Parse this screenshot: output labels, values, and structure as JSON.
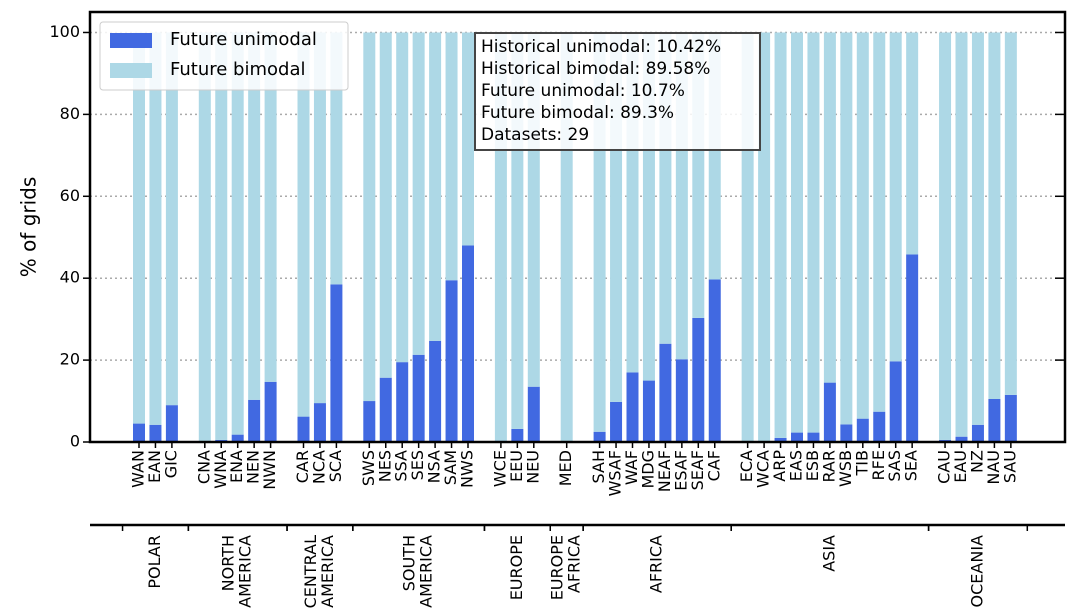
{
  "chart_data": {
    "type": "bar",
    "stacked": true,
    "ylabel": "% of grids",
    "categories": [
      "WAN",
      "EAN",
      "GIC",
      null,
      "CNA",
      "WNA",
      "ENA",
      "NEN",
      "NWN",
      null,
      "CAR",
      "NCA",
      "SCA",
      null,
      "SWS",
      "NES",
      "SSA",
      "SES",
      "NSA",
      "SAM",
      "NWS",
      null,
      "WCE",
      "EEU",
      "NEU",
      null,
      "MED",
      null,
      "SAH",
      "WSAF",
      "WAF",
      "MDG",
      "NEAF",
      "ESAF",
      "SEAF",
      "CAF",
      null,
      "ECA",
      "WCA",
      "ARP",
      "EAS",
      "ESB",
      "RAR",
      "WSB",
      "TIB",
      "RFE",
      "SAS",
      "SEA",
      null,
      "CAU",
      "EAU",
      "NZ",
      "NAU",
      "SAU"
    ],
    "series": [
      {
        "name": "Future unimodal",
        "color": "#4169e1",
        "values": [
          4.5,
          4.2,
          9,
          null,
          0,
          0.5,
          1.8,
          10.3,
          14.7,
          null,
          6.2,
          9.5,
          38.5,
          null,
          10,
          15.7,
          19.5,
          21.3,
          24.7,
          39.5,
          48,
          null,
          0.3,
          3.2,
          13.5,
          null,
          0.2,
          null,
          2.5,
          9.8,
          17,
          15,
          24,
          20.2,
          30.3,
          39.7,
          null,
          0,
          0,
          1,
          2.3,
          2.3,
          14.5,
          4.3,
          5.7,
          7.4,
          19.7,
          45.8,
          null,
          0.5,
          1.3,
          4.2,
          10.5,
          11.5
        ]
      },
      {
        "name": "Future bimodal",
        "color": "#add8e6",
        "values": [
          95.5,
          95.8,
          91,
          null,
          100,
          99.5,
          98.2,
          89.7,
          85.3,
          null,
          93.8,
          90.5,
          61.5,
          null,
          90,
          84.3,
          80.5,
          78.7,
          75.3,
          60.5,
          52,
          null,
          99.7,
          96.8,
          86.5,
          null,
          99.8,
          null,
          97.5,
          90.2,
          83,
          85,
          76,
          79.8,
          69.7,
          60.3,
          null,
          100,
          100,
          99,
          97.7,
          97.7,
          85.5,
          95.7,
          94.3,
          92.6,
          80.3,
          54.2,
          null,
          99.5,
          98.7,
          95.8,
          89.5,
          88.5
        ]
      }
    ],
    "groups": [
      [
        "POLAR"
      ],
      [
        "NORTH",
        "AMERICA"
      ],
      [
        "CENTRAL",
        "AMERICA"
      ],
      [
        "SOUTH",
        "AMERICA"
      ],
      [
        "EUROPE"
      ],
      [
        "EUROPE",
        "AFRICA"
      ],
      [
        "AFRICA"
      ],
      [
        "ASIA"
      ],
      [
        "OCEANIA"
      ]
    ],
    "annotation": [
      "Historical unimodal: 10.42%",
      "Historical bimodal: 89.58%",
      "Future unimodal: 10.7%",
      "Future bimodal: 89.3%",
      "Datasets: 29"
    ],
    "ylim": [
      0,
      105
    ],
    "yticks": [
      0,
      20,
      40,
      60,
      80,
      100
    ],
    "grid": true,
    "legend": "upper left"
  }
}
